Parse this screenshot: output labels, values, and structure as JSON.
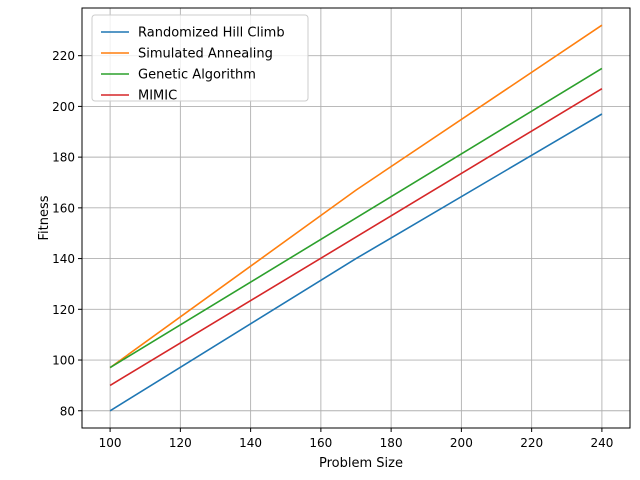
{
  "chart_data": {
    "type": "line",
    "xlabel": "Problem Size",
    "ylabel": "Fitness",
    "xlim": [
      92,
      248
    ],
    "ylim": [
      73.2,
      238.8
    ],
    "xticks": [
      100,
      120,
      140,
      160,
      180,
      200,
      220,
      240
    ],
    "yticks": [
      80,
      100,
      120,
      140,
      160,
      180,
      200,
      220
    ],
    "grid": true,
    "legend_position": "top-left",
    "series": [
      {
        "name": "Randomized Hill Climb",
        "color": "#1f77b4",
        "x": [
          100,
          170,
          240
        ],
        "y": [
          80,
          140,
          197
        ]
      },
      {
        "name": "Simulated Annealing",
        "color": "#ff7f0e",
        "x": [
          100,
          170,
          240
        ],
        "y": [
          97,
          167,
          232
        ]
      },
      {
        "name": "Genetic Algorithm",
        "color": "#2ca02c",
        "x": [
          100,
          240
        ],
        "y": [
          97,
          215
        ]
      },
      {
        "name": "MIMIC",
        "color": "#d62728",
        "x": [
          100,
          240
        ],
        "y": [
          90,
          207
        ]
      }
    ]
  }
}
